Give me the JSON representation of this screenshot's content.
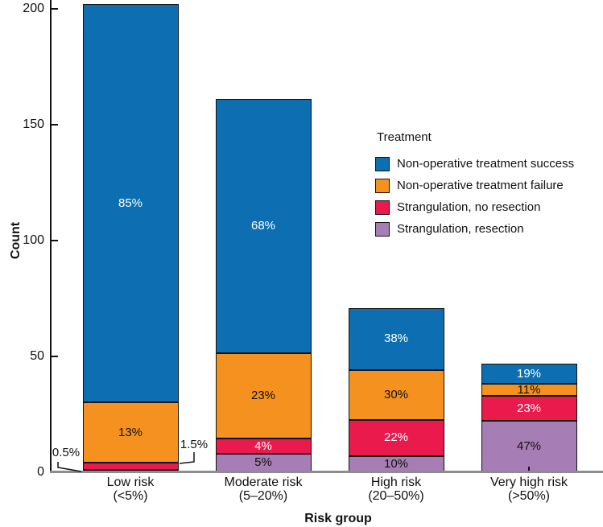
{
  "chart_data": {
    "type": "bar",
    "subtype": "stacked",
    "title": "",
    "xlabel": "Risk group",
    "ylabel": "Count",
    "ylim": [
      0,
      200
    ],
    "yticks": [
      0,
      50,
      100,
      150,
      200
    ],
    "grid": false,
    "legend_title": "Treatment",
    "legend_position": "right-middle",
    "categories": [
      {
        "label": "Low risk",
        "sublabel": "(<5%)",
        "total": 202
      },
      {
        "label": "Moderate risk",
        "sublabel": "(5–20%)",
        "total": 161
      },
      {
        "label": "High risk",
        "sublabel": "(20–50%)",
        "total": 71
      },
      {
        "label": "Very high risk",
        "sublabel": "(>50%)",
        "total": 47
      }
    ],
    "series": [
      {
        "name": "Non-operative treatment success",
        "color": "#0D6FB1",
        "label_color": "#ffffff",
        "percentages": [
          85,
          68,
          38,
          19
        ]
      },
      {
        "name": "Non-operative treatment failure",
        "color": "#F5911E",
        "label_color": "#111111",
        "percentages": [
          13,
          23,
          30,
          11
        ]
      },
      {
        "name": "Strangulation, no resection",
        "color": "#EA1A4C",
        "label_color": "#ffffff",
        "percentages": [
          1.5,
          4,
          22,
          23
        ]
      },
      {
        "name": "Strangulation, resection",
        "color": "#A67DB5",
        "label_color": "#111111",
        "percentages": [
          0.5,
          5,
          10,
          47
        ]
      }
    ],
    "stack_order_bottom_to_top": [
      "Strangulation, resection",
      "Strangulation, no resection",
      "Non-operative treatment failure",
      "Non-operative treatment success"
    ],
    "annotations": [
      {
        "text": "0.5%",
        "category": "Low risk",
        "series": "Strangulation, resection",
        "side": "left"
      },
      {
        "text": "1.5%",
        "category": "Low risk",
        "series": "Strangulation, no resection",
        "side": "right"
      }
    ]
  }
}
